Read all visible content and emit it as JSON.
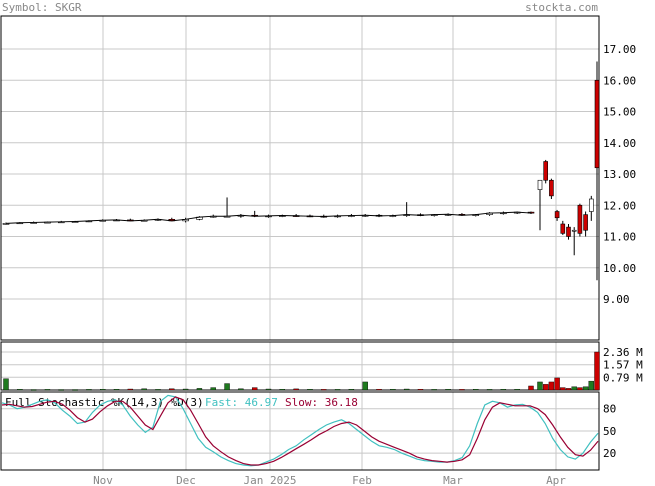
{
  "header": {
    "symbol_label": "Symbol: SKGR",
    "brand": "stockta.com"
  },
  "colors": {
    "up_candle": "#ffffff",
    "down_candle": "#cc0000",
    "volume_up": "#1f7a1f",
    "volume_down": "#cc0000",
    "fast_line": "#40c0c0",
    "slow_line": "#990033",
    "grid": "#c8c8c8",
    "frame": "#000000",
    "label_gray": "#888888"
  },
  "chart_data": [
    {
      "type": "candlestick",
      "name": "price",
      "y_axis_ticks": [
        "17.00",
        "16.00",
        "15.00",
        "14.00",
        "13.00",
        "12.00",
        "11.00",
        "10.00",
        "9.00"
      ],
      "y_tick_values": [
        17,
        16,
        15,
        14,
        13,
        12,
        11,
        10,
        9
      ],
      "x_axis_labels": [
        "Nov",
        "Dec",
        "Jan 2025",
        "Feb",
        "Mar",
        "Apr"
      ],
      "ohlc": [
        [
          11.4,
          11.45,
          11.38,
          11.42
        ],
        [
          11.42,
          11.46,
          11.4,
          11.44
        ],
        [
          11.44,
          11.48,
          11.42,
          11.45
        ],
        [
          11.45,
          11.48,
          11.43,
          11.46
        ],
        [
          11.46,
          11.5,
          11.44,
          11.47
        ],
        [
          11.47,
          11.5,
          11.45,
          11.48
        ],
        [
          11.48,
          11.52,
          11.46,
          11.5
        ],
        [
          11.5,
          11.55,
          11.48,
          11.52
        ],
        [
          11.52,
          11.56,
          11.5,
          11.53
        ],
        [
          11.53,
          11.57,
          11.5,
          11.5
        ],
        [
          11.5,
          11.55,
          11.48,
          11.52
        ],
        [
          11.52,
          11.58,
          11.5,
          11.55
        ],
        [
          11.55,
          11.6,
          11.5,
          11.5
        ],
        [
          11.5,
          11.6,
          11.45,
          11.55
        ],
        [
          11.55,
          11.65,
          11.52,
          11.62
        ],
        [
          11.62,
          11.7,
          11.6,
          11.65
        ],
        [
          11.65,
          12.25,
          11.62,
          11.65
        ],
        [
          11.65,
          11.72,
          11.6,
          11.68
        ],
        [
          11.68,
          11.82,
          11.62,
          11.65
        ],
        [
          11.65,
          11.7,
          11.6,
          11.66
        ],
        [
          11.66,
          11.7,
          11.62,
          11.67
        ],
        [
          11.67,
          11.72,
          11.63,
          11.66
        ],
        [
          11.66,
          11.7,
          11.62,
          11.65
        ],
        [
          11.65,
          11.7,
          11.6,
          11.64
        ],
        [
          11.64,
          11.7,
          11.6,
          11.66
        ],
        [
          11.66,
          11.72,
          11.62,
          11.67
        ],
        [
          11.67,
          11.72,
          11.63,
          11.68
        ],
        [
          11.68,
          11.72,
          11.62,
          11.66
        ],
        [
          11.66,
          11.7,
          11.62,
          11.67
        ],
        [
          11.67,
          12.1,
          11.63,
          11.7
        ],
        [
          11.7,
          11.74,
          11.65,
          11.68
        ],
        [
          11.68,
          11.72,
          11.64,
          11.7
        ],
        [
          11.7,
          11.74,
          11.66,
          11.71
        ],
        [
          11.71,
          11.75,
          11.66,
          11.68
        ],
        [
          11.68,
          11.72,
          11.64,
          11.7
        ],
        [
          11.7,
          11.78,
          11.66,
          11.75
        ],
        [
          11.75,
          11.8,
          11.7,
          11.76
        ],
        [
          11.76,
          11.8,
          11.72,
          11.78
        ],
        [
          11.78,
          11.8,
          11.72,
          11.75
        ],
        [
          12.5,
          12.8,
          11.2,
          12.8
        ],
        [
          13.4,
          13.45,
          12.7,
          12.8
        ],
        [
          12.8,
          12.85,
          12.2,
          12.3
        ],
        [
          11.8,
          11.85,
          11.5,
          11.6
        ],
        [
          11.4,
          11.5,
          11.05,
          11.1
        ],
        [
          11.3,
          11.4,
          10.9,
          11.0
        ],
        [
          11.2,
          11.3,
          10.4,
          11.2
        ],
        [
          12.0,
          12.05,
          11.0,
          11.1
        ],
        [
          11.7,
          11.8,
          11.0,
          11.2
        ],
        [
          11.8,
          12.3,
          11.5,
          12.2
        ],
        [
          16.0,
          16.6,
          9.6,
          13.2
        ]
      ]
    },
    {
      "type": "bar",
      "name": "volume",
      "y_axis_ticks": [
        "2.36 M",
        "1.57 M",
        "0.79 M"
      ],
      "y_tick_values": [
        2.36,
        1.57,
        0.79
      ],
      "values": [
        0.7,
        0.05,
        0.03,
        0.04,
        0.03,
        0.03,
        0.04,
        0.05,
        0.05,
        0.06,
        0.08,
        0.04,
        0.08,
        0.06,
        0.1,
        0.15,
        0.4,
        0.08,
        0.15,
        0.06,
        0.05,
        0.07,
        0.05,
        0.04,
        0.04,
        0.05,
        0.5,
        0.05,
        0.05,
        0.06,
        0.05,
        0.04,
        0.05,
        0.04,
        0.05,
        0.04,
        0.05,
        0.05,
        0.25,
        0.5,
        0.35,
        0.5,
        0.75,
        0.15,
        0.1,
        0.2,
        0.15,
        0.2,
        0.55,
        2.36
      ],
      "up": [
        true,
        true,
        true,
        true,
        true,
        true,
        true,
        true,
        true,
        false,
        true,
        true,
        false,
        true,
        true,
        true,
        true,
        true,
        false,
        true,
        true,
        false,
        true,
        false,
        true,
        true,
        true,
        false,
        true,
        true,
        false,
        true,
        true,
        false,
        true,
        true,
        true,
        true,
        false,
        true,
        false,
        false,
        false,
        false,
        false,
        true,
        false,
        true,
        true,
        false
      ]
    },
    {
      "type": "line",
      "name": "stochastic",
      "title": "Full Stochastic %K(14,3) %D(3)",
      "fast_label": "Fast: 46.97",
      "slow_label": "Slow: 36.18",
      "y_axis_ticks": [
        "80",
        "50",
        "20"
      ],
      "y_tick_values": [
        80,
        50,
        20
      ],
      "series": [
        {
          "name": "Fast",
          "values": [
            88,
            85,
            80,
            82,
            86,
            90,
            92,
            88,
            78,
            70,
            60,
            62,
            75,
            85,
            90,
            92,
            85,
            70,
            58,
            48,
            55,
            90,
            98,
            96,
            80,
            60,
            40,
            28,
            22,
            15,
            10,
            6,
            4,
            3,
            4,
            8,
            12,
            18,
            25,
            30,
            38,
            45,
            52,
            58,
            62,
            65,
            60,
            52,
            44,
            36,
            30,
            28,
            25,
            20,
            16,
            12,
            10,
            9,
            8,
            8,
            10,
            14,
            30,
            60,
            85,
            90,
            88,
            82,
            85,
            86,
            82,
            75,
            60,
            40,
            25,
            15,
            12,
            20,
            35,
            47
          ]
        },
        {
          "name": "Slow",
          "values": [
            85,
            86,
            84,
            82,
            83,
            86,
            89,
            90,
            86,
            78,
            68,
            62,
            66,
            76,
            84,
            90,
            90,
            82,
            70,
            58,
            52,
            70,
            88,
            96,
            92,
            78,
            60,
            42,
            30,
            22,
            15,
            10,
            6,
            4,
            4,
            6,
            9,
            14,
            20,
            26,
            32,
            38,
            45,
            50,
            56,
            60,
            62,
            58,
            50,
            42,
            36,
            32,
            28,
            24,
            20,
            15,
            12,
            10,
            9,
            8,
            9,
            11,
            18,
            40,
            65,
            82,
            88,
            86,
            84,
            84,
            84,
            80,
            72,
            58,
            42,
            28,
            18,
            16,
            24,
            36
          ]
        }
      ]
    }
  ]
}
